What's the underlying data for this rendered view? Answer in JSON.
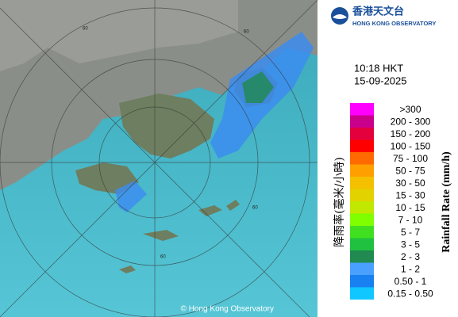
{
  "header": {
    "title_zh": "香港天文台",
    "title_en": "HONG KONG OBSERVATORY"
  },
  "time": "10:18 HKT",
  "date": "15-09-2025",
  "legend": {
    "title_zh": "降雨率(毫米/小時)",
    "title_en": "Rainfall Rate (mm/h)",
    "entries": [
      {
        "label": ">300",
        "color": "#ff00ff"
      },
      {
        "label": "200 - 300",
        "color": "#c8008c"
      },
      {
        "label": "150 - 200",
        "color": "#e4003c"
      },
      {
        "label": "100 - 150",
        "color": "#ff0000"
      },
      {
        "label": "75 - 100",
        "color": "#ff6a00"
      },
      {
        "label": "50 - 75",
        "color": "#ffa000"
      },
      {
        "label": "30 - 50",
        "color": "#f4c000"
      },
      {
        "label": "15 - 30",
        "color": "#e2d200"
      },
      {
        "label": "10 - 15",
        "color": "#c0e800"
      },
      {
        "label": "7 - 10",
        "color": "#80ff00"
      },
      {
        "label": "5 - 7",
        "color": "#40e020"
      },
      {
        "label": "3 - 5",
        "color": "#20c040"
      },
      {
        "label": "2 - 3",
        "color": "#208a50"
      },
      {
        "label": "1 - 2",
        "color": "#4aa0ff"
      },
      {
        "label": "0.50 - 1",
        "color": "#1880f0"
      },
      {
        "label": "0.15 - 0.50",
        "color": "#10c8ff"
      }
    ]
  },
  "ring_labels": [
    "60",
    "60",
    "60",
    "60"
  ],
  "copyright": "© Hong Kong Observatory"
}
